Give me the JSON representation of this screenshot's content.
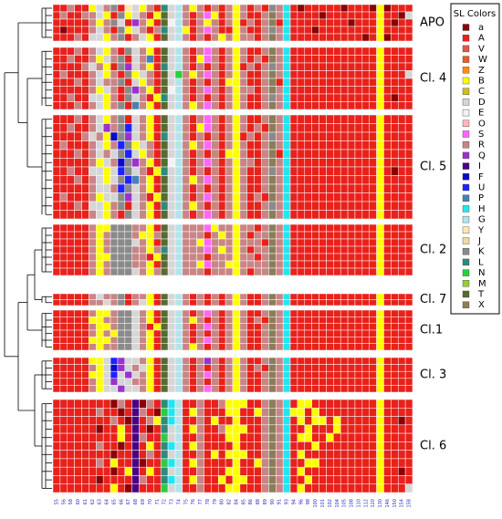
{
  "legend": {
    "title": "SL Colors",
    "items": [
      {
        "label": "a",
        "color": "#8b0000"
      },
      {
        "label": "A",
        "color": "#e8211b"
      },
      {
        "label": "V",
        "color": "#d65a4a"
      },
      {
        "label": "W",
        "color": "#ea5a2a"
      },
      {
        "label": "Z",
        "color": "#ff8c1a"
      },
      {
        "label": "B",
        "color": "#ffff00"
      },
      {
        "label": "C",
        "color": "#cdbf1e"
      },
      {
        "label": "D",
        "color": "#d6d6d6"
      },
      {
        "label": "E",
        "color": "#f2f2f2"
      },
      {
        "label": "O",
        "color": "#ffb6c1"
      },
      {
        "label": "S",
        "color": "#ff66ff"
      },
      {
        "label": "R",
        "color": "#c98585"
      },
      {
        "label": "Q",
        "color": "#9a32cd"
      },
      {
        "label": "I",
        "color": "#4b0082"
      },
      {
        "label": "F",
        "color": "#0a0ac8"
      },
      {
        "label": "U",
        "color": "#1e22ff"
      },
      {
        "label": "P",
        "color": "#4682b4"
      },
      {
        "label": "H",
        "color": "#22e6ee"
      },
      {
        "label": "G",
        "color": "#b4e4ea"
      },
      {
        "label": "Y",
        "color": "#ffe8b0"
      },
      {
        "label": "J",
        "color": "#f2d8a8"
      },
      {
        "label": "K",
        "color": "#8a8a8a"
      },
      {
        "label": "L",
        "color": "#2e8b7a"
      },
      {
        "label": "N",
        "color": "#2ecc40"
      },
      {
        "label": "M",
        "color": "#9acd32"
      },
      {
        "label": "T",
        "color": "#556b2f"
      },
      {
        "label": "X",
        "color": "#8b7d5b"
      }
    ]
  },
  "columns": [
    "55",
    "56",
    "58",
    "60",
    "61",
    "62",
    "63",
    "64",
    "65",
    "66",
    "67",
    "68",
    "69",
    "70",
    "71",
    "72",
    "73",
    "74",
    "75",
    "76",
    "77",
    "78",
    "79",
    "80",
    "82",
    "84",
    "85",
    "86",
    "88",
    "89",
    "90",
    "91",
    "93",
    "94",
    "96",
    "98",
    "100",
    "101",
    "102",
    "104",
    "105",
    "108",
    "110",
    "112",
    "120",
    "130",
    "146",
    "150",
    "154",
    "158"
  ],
  "clusters": [
    {
      "label": "APO",
      "rows": [
        "AARAABDRKAYDBRALDGRBRARARBRARAKRHAaAAAAAaAAAaBaAAA",
        "ARAARRDBAKBDRABTDGRARSBARBRAARXRHAAAAaAAAAAAABAAaD",
        "AAAAARBRKDAQRBATEGRARBRARBARARXAHAAAAAAAAaAAABAaAA",
        "AaAAARDRAKBDRARLDGBARSRAABRAARKRHAAAaAAAAAAAABAAAA",
        "AAARADDBRKARDBATDGRARARBRBRRARXRHAAAAAAAAAAaABaAAA"
      ]
    },
    {
      "label": "Cl. 4",
      "rows": [
        "AAARARDBRAKDRBATDGRARSRARBRAARXRHAAAAAAAAAAAABAAAA",
        "AARAARBDRKADRPATDGRABSRARBRARAXRHAAAAAAAAAAAABAAAA",
        "AAAARDRBAKQDRBALDGRARARARBARARKRHAAAAAAAAAAAABAAAA",
        "ARAAARDBRAKBDRATDNRBRSRARBRAARXRHAAAAAAAAAAAABAAAD",
        "AAARARDRRKADBRATDGRARARABBRAARXAHAAAAAAAAAAAABAAAA",
        "AAAAARBDRAKQRBATEGRARSRARBRRARXRHAAAAAAAAAAAABAAAA",
        "AARAADDBRAKDRABLDGRARARARBRAARKRHAAAAAAAAAAAABAaAA",
        "AAARARDBRKAPRBATDGRBRSRARBRAARXRHAAAAAAAAAAAABAAAA"
      ]
    },
    {
      "label": "Cl. 5",
      "rows": [
        "AAARARDBRKADRBATDGRARSRARBRAARXRHAAAAAAAAAAAABAAAA",
        "AARAARDQRKUDRBATDGRABSRARBRARAXRHAAAAAAAAAAAABAAAA",
        "AAAARDRBFKQDRBALDGRARARARBARARKRHAAAAAAAAAAAABAAAA",
        "ARAAARDBRUKBDRATDGRBRSRARBRAARXRHAAAAAAAAAAAABAAAA",
        "AAARARDRDKUDBRATDGRARARABBRAARXAHAAAAAAAAAAAABAAAA",
        "AAAAARBDRFKQRBATEGRARSRARBRRARXRHAAAAAAAAAAAABAAAA",
        "AARAADDBDUKDRABLDGRARARARBRAARKRHAAAAAAAAAAAABAaAA",
        "AAARARDBDKUPRBATDGRBRSRARBRAARXRHAAAAAAAAAAAABAAAA",
        "AAAAARDDRUKDRBATDGRARARARBRAARXRHAAAAAAAAAAAABAAAA",
        "ARAAARBDDKQDRABTDGRARSRARBRARAXRHAAAAAAAAAAAABAAAA",
        "AAARADDBRKADRBALDGRBRARARBRAARKRHAAAAAAAAAAAABAAAA",
        "AAAAARDBRAKDRBATDGRARSRARBRAARXRHAAAAAAAAAAAABAAAA"
      ]
    },
    {
      "label": "Cl. 2",
      "rows": [
        "AAAAARBBKKKRRBATDGRRRSBRRBRRARXRHAAAAAAAAAAAABAAAA",
        "AAAAARBRKKKRBBRTDGRRRARBRBRARRXRHAAAAAAAAAAAABAAAA",
        "AAAAARBRKKKDRBATDGRRBSRRRBRRRAXRHAAAAAAAAAAAABAAAA",
        "AAAAARBRKKKRRBRLDGRRRSRBRBRARRXRHAAAAAAAAAAAABAAAA",
        "AAAAARBBKKKRRABTDGRRRARRRBRRARXRHAAAAAAAAAAAABAAAA",
        "AAAAARBRKKKRRBATDGRRBSRRBBRRRRXRHAAAAAAAAAAAABAAAA",
        "AAAAARBRKKKDRBRTDGRRRARRRBRARRXRHAAAAAAAAAAAABAAAA"
      ]
    },
    {
      "label": "Cl. 7",
      "rows": [
        "AAAAARDRRKARRBATDGRARARARBRAARXRHAAAAAAAAAAAABAAAA",
        "AAAAARRDRKARDBATDGRARARARBRAARXRHAAAAAAAAAAAABAAAA"
      ]
    },
    {
      "label": "Cl.1",
      "rows": [
        "AAAAARBBRKKDRBATDGRARSRARBRAARXRHAAAAAAAAAAAABAAAA",
        "AAAAABBRRKKDRBATDGRBRARARBRARAXRHAAAAAAAAAAAABAAAA",
        "AAAAARBBRKKDRABTDGRARSRARBRAARXRHAAAAAAAAAAAABAAAA",
        "AAAAARBRBKKDRBATDGRARARARBRAARXRHAAAAAAAAAAAABAAAA",
        "AAAAABBBRKKDRBATDGRARSRARBRAARXRHAAAAAAAAAAAABAAAA",
        "AAAAARBRRKKDRBATDGRBRARARBRAARXRHAAAAAAAAAAAABAAAA"
      ]
    },
    {
      "label": "Cl. 3",
      "rows": [
        "AAAAABBDUQDDRBATDGRARQRARBRAARXRHAAAAAAAAAAAABAAAA",
        "AAAAARBDFQDRDBATDGRARARARBRARAXRHAAAAAAAAAAAABAAAA",
        "AAAAABBDUDQDRBATDGRARSRARBRAARXRHAAAAAAAAAAAABAAAA",
        "AAAAARBDQDDRRBATDGRARARARBRAARXRHAAAAAAAAAAAABAAAA",
        "AAAAARBDDQDDRBATDGRARSRARBRAARXRHAAAAAAAAAAAABAAAA"
      ]
    },
    {
      "label": "Cl. 6",
      "rows": [
        "AAAAAAAAaRAIaRALHGAARAARBBBAARXRHABBAAAAAAAAABAAAA",
        "AAAAAARAAaAIRAaNHGABRAAABBAABRXRHBBABAAAAAAAABAAAA",
        "AAAAAAAARAaIARBLHGAARABAABAAARXRHABABBABAAAAABAAaA",
        "AAAAAAaAABAIAaALDGABRAARBBBAARXRHAABAAABAAAAABAAAA",
        "AAAAAAAAABAIRAANDGAARAAABBAAARXRHABBAABAAAAAABAAAA",
        "AAAAAARAAaAIABALHGABRAAAABAAARXRHAAABAAAAAAAABAAAA",
        "AAAAAAAAaAAIARALDGAARABABBBAARXRHABAAAAAAAAAABAAAA",
        "AAAAAARABAAIaAANHGABRAAAABAABRXRHAABBAAAAAAAABAAAA",
        "AAAAAAAAaABIABALDGAARAAABBAAARXRHABAAAAAAAAAABAAaA",
        "AAAAAAaAAAAIRAALHGABRAABABBAARXRHAABAAAAAAAAABAAAA",
        "AAAAAAAABAaIAAANDGAARAAABBAAARXRHABAAAAAAAAAABAAAD"
      ]
    }
  ]
}
